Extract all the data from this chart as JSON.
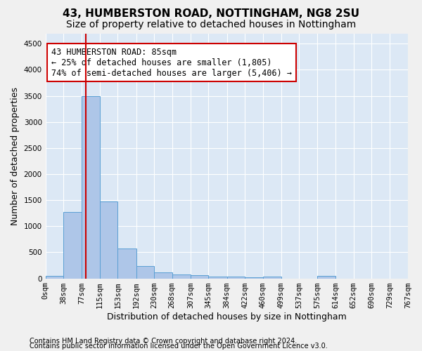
{
  "title": "43, HUMBERSTON ROAD, NOTTINGHAM, NG8 2SU",
  "subtitle": "Size of property relative to detached houses in Nottingham",
  "xlabel": "Distribution of detached houses by size in Nottingham",
  "ylabel": "Number of detached properties",
  "footer_line1": "Contains HM Land Registry data © Crown copyright and database right 2024.",
  "footer_line2": "Contains public sector information licensed under the Open Government Licence v3.0.",
  "bar_edges": [
    0,
    38,
    77,
    115,
    153,
    192,
    230,
    268,
    307,
    345,
    384,
    422,
    460,
    499,
    537,
    575,
    614,
    652,
    690,
    729,
    767
  ],
  "bar_heights": [
    50,
    1280,
    3500,
    1480,
    580,
    240,
    110,
    80,
    55,
    40,
    35,
    15,
    30,
    0,
    0,
    50,
    0,
    0,
    0,
    0
  ],
  "bar_color": "#aec6e8",
  "bar_edge_color": "#5a9fd4",
  "red_line_x": 85,
  "red_line_color": "#cc0000",
  "annotation_text": "43 HUMBERSTON ROAD: 85sqm\n← 25% of detached houses are smaller (1,805)\n74% of semi-detached houses are larger (5,406) →",
  "annotation_box_color": "#ffffff",
  "annotation_box_edge_color": "#cc0000",
  "ylim": [
    0,
    4700
  ],
  "yticks": [
    0,
    500,
    1000,
    1500,
    2000,
    2500,
    3000,
    3500,
    4000,
    4500
  ],
  "tick_labels": [
    "0sqm",
    "38sqm",
    "77sqm",
    "115sqm",
    "153sqm",
    "192sqm",
    "230sqm",
    "268sqm",
    "307sqm",
    "345sqm",
    "384sqm",
    "422sqm",
    "460sqm",
    "499sqm",
    "537sqm",
    "575sqm",
    "614sqm",
    "652sqm",
    "690sqm",
    "729sqm",
    "767sqm"
  ],
  "bg_color": "#dce8f5",
  "grid_color": "#ffffff",
  "title_fontsize": 11,
  "subtitle_fontsize": 10,
  "label_fontsize": 9,
  "tick_fontsize": 7.5,
  "footer_fontsize": 7
}
